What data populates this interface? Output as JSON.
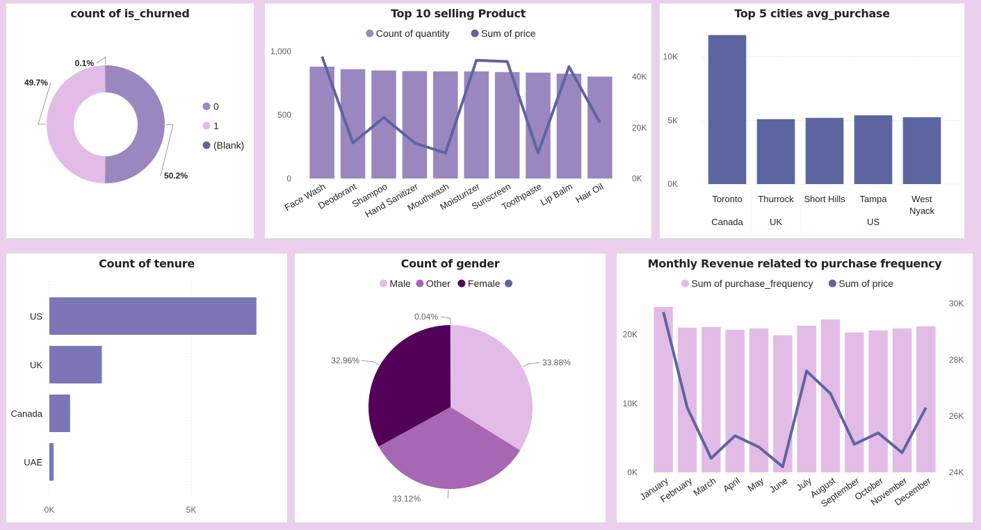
{
  "colors": {
    "background": "#ebd0ee",
    "churn_0": "#9b87c0",
    "churn_1": "#e2bce6",
    "churn_blank": "#5c65a0",
    "bar_purple": "#9b87c0",
    "line_navy": "#5c65a0",
    "tenure_bar": "#7b76b5",
    "gender_male": "#e2bce6",
    "gender_other": "#a667b3",
    "gender_female": "#520058",
    "revenue_bar": "#e2bce6"
  },
  "charts": {
    "churn": {
      "title": "count of is_churned",
      "legend": [
        {
          "label": "0",
          "icon": "legend-dot"
        },
        {
          "label": "1",
          "icon": "legend-dot"
        },
        {
          "label": "(Blank)",
          "icon": "legend-dot"
        }
      ],
      "labels": [
        "50.2%",
        "49.7%",
        "0.1%"
      ]
    },
    "products": {
      "title": "Top 10 selling Product",
      "legend": [
        "Count of quantity",
        "Sum of price"
      ],
      "left_ticks": [
        "0",
        "500",
        "1,000"
      ],
      "right_ticks": [
        "0K",
        "20K",
        "40K"
      ]
    },
    "cities": {
      "title": "Top 5 cities avg_purchase",
      "ticks": [
        "0K",
        "5K",
        "10K"
      ],
      "country_labels": [
        "Canada",
        "UK",
        "US"
      ]
    },
    "tenure": {
      "title": "Count of tenure",
      "ticks": [
        "0K",
        "5K"
      ]
    },
    "gender": {
      "title": "Count of gender",
      "legend": [
        "Male",
        "Other",
        "Female",
        ""
      ],
      "labels": [
        "33.88%",
        "33.12%",
        "32.96%",
        "0.04%"
      ]
    },
    "revenue": {
      "title": "Monthly Revenue related to purchase frequency",
      "legend": [
        "Sum of purchase_frequency",
        "Sum of price"
      ],
      "left_ticks": [
        "0K",
        "10K",
        "20K"
      ],
      "right_ticks": [
        "24K",
        "26K",
        "28K",
        "30K"
      ]
    }
  },
  "chart_data": [
    {
      "type": "pie",
      "title": "count of is_churned",
      "categories": [
        "0",
        "1",
        "(Blank)"
      ],
      "values": [
        50.2,
        49.7,
        0.1
      ],
      "unit": "percent",
      "donut": true
    },
    {
      "type": "bar",
      "title": "Top 10 selling Product",
      "categories": [
        "Face Wash",
        "Deodorant",
        "Shampoo",
        "Hand Sanitizer",
        "Mouthwash",
        "Moisturizer",
        "Sunscreen",
        "Toothpaste",
        "Lip Balm",
        "Hair Oil"
      ],
      "series": [
        {
          "name": "Count of quantity",
          "type": "bar",
          "axis": "left",
          "values": [
            880,
            860,
            850,
            845,
            843,
            843,
            837,
            833,
            825,
            802
          ]
        },
        {
          "name": "Sum of price",
          "type": "line",
          "axis": "right",
          "values": [
            48000,
            14000,
            24000,
            14000,
            10000,
            46500,
            46000,
            10000,
            44000,
            22000
          ]
        }
      ],
      "ylim_left": [
        0,
        1000
      ],
      "ylim_right": [
        0,
        50000
      ],
      "legend": "top-center"
    },
    {
      "type": "bar",
      "title": "Top 5 cities avg_purchase",
      "categories": [
        "Toronto",
        "Thurrock",
        "Short Hills",
        "Tampa",
        "West Nyack"
      ],
      "groups": [
        "Canada",
        "UK",
        "US",
        "US",
        "US"
      ],
      "values": [
        11700,
        5100,
        5200,
        5400,
        5250
      ],
      "ylim": [
        0,
        12000
      ]
    },
    {
      "type": "bar",
      "orientation": "horizontal",
      "title": "Count of tenure",
      "categories": [
        "US",
        "UK",
        "Canada",
        "UAE"
      ],
      "values": [
        7300,
        1850,
        730,
        150
      ],
      "xlim": [
        0,
        7500
      ]
    },
    {
      "type": "pie",
      "title": "Count of gender",
      "categories": [
        "Male",
        "Other",
        "Female",
        ""
      ],
      "values": [
        33.88,
        33.12,
        32.96,
        0.04
      ],
      "unit": "percent",
      "legend": "top-center"
    },
    {
      "type": "bar",
      "title": "Monthly Revenue related to purchase frequency",
      "categories": [
        "January",
        "February",
        "March",
        "April",
        "May",
        "June",
        "July",
        "August",
        "September",
        "October",
        "November",
        "December"
      ],
      "series": [
        {
          "name": "Sum of purchase_frequency",
          "type": "bar",
          "axis": "left",
          "values": [
            24000,
            21000,
            21100,
            20700,
            20900,
            19900,
            21300,
            22200,
            20300,
            20600,
            20900,
            21200
          ]
        },
        {
          "name": "Sum of price",
          "type": "line",
          "axis": "right",
          "values": [
            29700,
            26300,
            24500,
            25300,
            24900,
            24200,
            27600,
            26800,
            25000,
            25400,
            24700,
            26300
          ]
        }
      ],
      "ylim_left": [
        0,
        24500
      ],
      "ylim_right": [
        24000,
        30000
      ],
      "legend": "top-center"
    }
  ]
}
